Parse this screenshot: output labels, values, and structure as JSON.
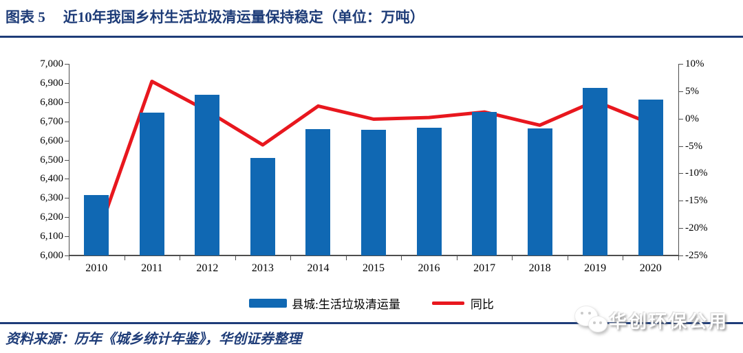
{
  "header": {
    "figure_label": "图表 5",
    "title": "近10年我国乡村生活垃圾清运量保持稳定（单位：万吨）"
  },
  "chart_data": {
    "type": "bar+line",
    "categories": [
      "2010",
      "2011",
      "2012",
      "2013",
      "2014",
      "2015",
      "2016",
      "2017",
      "2018",
      "2019",
      "2020"
    ],
    "series": [
      {
        "name": "县城:生活垃圾清运量",
        "type": "bar",
        "axis": "left",
        "values": [
          6317,
          6744,
          6838,
          6509,
          6661,
          6656,
          6666,
          6748,
          6664,
          6876,
          6812
        ]
      },
      {
        "name": "同比",
        "type": "line",
        "axis": "right",
        "values": [
          -21.9,
          6.8,
          1.4,
          -4.8,
          2.3,
          -0.1,
          0.2,
          1.2,
          -1.2,
          3.2,
          -0.9
        ]
      }
    ],
    "left_axis": {
      "min": 6000,
      "max": 7000,
      "step": 100,
      "tick_labels": [
        "7,000",
        "6,900",
        "6,800",
        "6,700",
        "6,600",
        "6,500",
        "6,400",
        "6,300",
        "6,200",
        "6,100",
        "6,000"
      ]
    },
    "right_axis": {
      "min": -25,
      "max": 10,
      "step": 5,
      "tick_labels": [
        "10%",
        "5%",
        "0%",
        "-5%",
        "-10%",
        "-15%",
        "-20%",
        "-25%"
      ]
    },
    "grid": false,
    "legend_position": "bottom-center",
    "title": "近10年我国乡村生活垃圾清运量保持稳定",
    "unit": "万吨"
  },
  "footer": {
    "source": "资料来源：历年《城乡统计年鉴》，华创证券整理"
  },
  "watermark": {
    "icon": "wechat-chat-bubbles-icon",
    "text": "华创环保公用"
  },
  "colors": {
    "navy": "#1E3C78",
    "bar_blue": "#1068B3",
    "line_red": "#E8171E",
    "axis_line": "#4D4D4D"
  }
}
